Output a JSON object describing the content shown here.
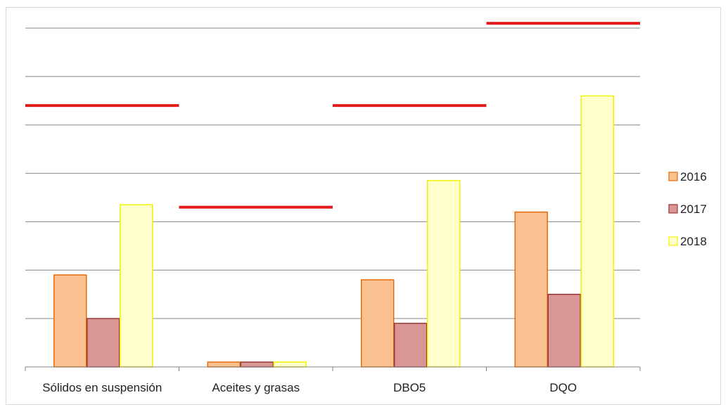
{
  "chart_data": {
    "type": "bar",
    "categories": [
      "Sólidos en suspensión",
      "Aceites y grasas",
      "DBO5",
      "DQO"
    ],
    "series": [
      {
        "name": "2016",
        "values": [
          38,
          2,
          36,
          64
        ],
        "fill": "#fac090",
        "stroke": "#e46c0a"
      },
      {
        "name": "2017",
        "values": [
          20,
          2,
          18,
          30
        ],
        "fill": "#d99694",
        "stroke": "#953735"
      },
      {
        "name": "2018",
        "values": [
          67,
          2,
          77,
          112
        ],
        "fill": "#ffffcc",
        "stroke": "#f2f200"
      }
    ],
    "limits": [
      108,
      66,
      108,
      142
    ],
    "limit_color": "#e31b1b",
    "ylim": [
      0,
      140
    ],
    "y_gridline_step": 20,
    "y_tick_labels_shown": false,
    "grid": true,
    "legend_position": "right",
    "title": "",
    "xlabel": "",
    "ylabel": ""
  }
}
